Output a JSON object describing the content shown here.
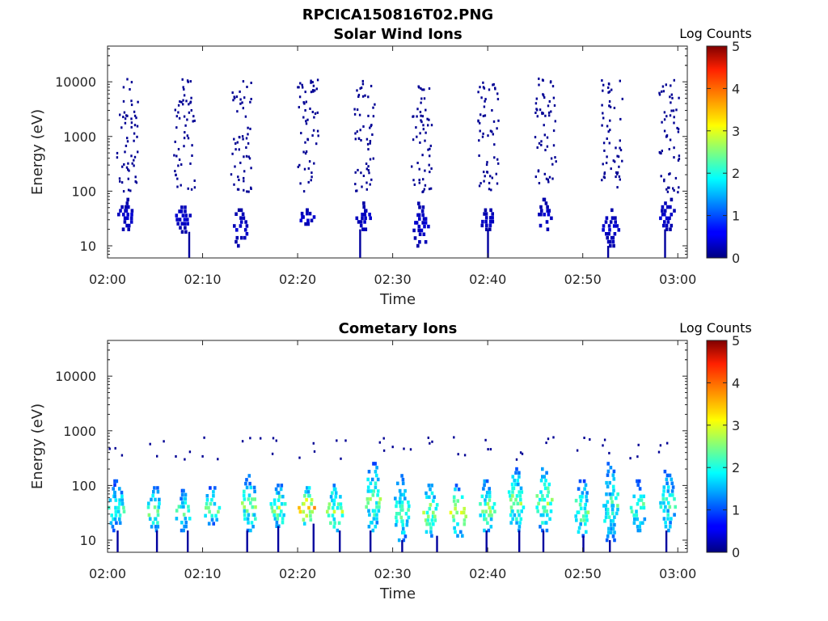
{
  "figure_title": "RPCICA150816T02.PNG",
  "chart_data": [
    {
      "type": "heatmap",
      "title": "Solar Wind Ions",
      "xlabel": "Time",
      "ylabel": "Energy (eV)",
      "y_scale": "log",
      "ylim": [
        6,
        45000
      ],
      "xlim": [
        "02:00",
        "03:01"
      ],
      "x_ticks": [
        "02:00",
        "02:10",
        "02:20",
        "02:30",
        "02:40",
        "02:50",
        "03:00"
      ],
      "y_ticks": [
        "10",
        "100",
        "1000",
        "10000"
      ],
      "colorbar": {
        "label": "Log Counts",
        "min": 0,
        "max": 5,
        "ticks": [
          "0",
          "1",
          "2",
          "3",
          "4",
          "5"
        ],
        "colormap": "jet"
      },
      "grid": false,
      "bursts": [
        {
          "time": "02:02",
          "energy_eV": [
            20,
            70
          ],
          "log_counts": 0.3
        },
        {
          "time": "02:08",
          "energy_eV": [
            18,
            60
          ],
          "log_counts": 0.3
        },
        {
          "time": "02:14",
          "energy_eV": [
            10,
            45
          ],
          "log_counts": 0.3
        },
        {
          "time": "02:21",
          "energy_eV": [
            25,
            45
          ],
          "log_counts": 0.35
        },
        {
          "time": "02:27",
          "energy_eV": [
            20,
            60
          ],
          "log_counts": 0.3
        },
        {
          "time": "02:33",
          "energy_eV": [
            10,
            70
          ],
          "log_counts": 0.3
        },
        {
          "time": "02:40",
          "energy_eV": [
            20,
            45
          ],
          "log_counts": 0.3
        },
        {
          "time": "02:46",
          "energy_eV": [
            20,
            70
          ],
          "log_counts": 0.3
        },
        {
          "time": "02:53",
          "energy_eV": [
            10,
            45
          ],
          "log_counts": 0.3
        },
        {
          "time": "02:59",
          "energy_eV": [
            20,
            70
          ],
          "log_counts": 0.3
        }
      ],
      "sparse_counts": {
        "energy_eV": [
          100,
          12000
        ],
        "log_counts": 0.1
      }
    },
    {
      "type": "heatmap",
      "title": "Cometary Ions",
      "xlabel": "Time",
      "ylabel": "Energy (eV)",
      "y_scale": "log",
      "ylim": [
        6,
        45000
      ],
      "xlim": [
        "02:00",
        "03:01"
      ],
      "x_ticks": [
        "02:00",
        "02:10",
        "02:20",
        "02:30",
        "02:40",
        "02:50",
        "03:00"
      ],
      "y_ticks": [
        "10",
        "100",
        "1000",
        "10000"
      ],
      "colorbar": {
        "label": "Log Counts",
        "min": 0,
        "max": 5,
        "ticks": [
          "0",
          "1",
          "2",
          "3",
          "4",
          "5"
        ],
        "colormap": "jet"
      },
      "grid": false,
      "bursts": [
        {
          "time": "02:01",
          "energy_eV": [
            15,
            120
          ],
          "log_counts": 1.6
        },
        {
          "time": "02:05",
          "energy_eV": [
            15,
            90
          ],
          "log_counts": 1.8
        },
        {
          "time": "02:08",
          "energy_eV": [
            15,
            80
          ],
          "log_counts": 1.7
        },
        {
          "time": "02:11",
          "energy_eV": [
            20,
            90
          ],
          "log_counts": 1.8
        },
        {
          "time": "02:15",
          "energy_eV": [
            15,
            150
          ],
          "log_counts": 1.8
        },
        {
          "time": "02:18",
          "energy_eV": [
            18,
            100
          ],
          "log_counts": 2.0
        },
        {
          "time": "02:21",
          "energy_eV": [
            20,
            90
          ],
          "log_counts": 2.4
        },
        {
          "time": "02:24",
          "energy_eV": [
            15,
            100
          ],
          "log_counts": 2.0
        },
        {
          "time": "02:28",
          "energy_eV": [
            15,
            250
          ],
          "log_counts": 1.8
        },
        {
          "time": "02:31",
          "energy_eV": [
            10,
            150
          ],
          "log_counts": 1.7
        },
        {
          "time": "02:34",
          "energy_eV": [
            12,
            100
          ],
          "log_counts": 2.0
        },
        {
          "time": "02:37",
          "energy_eV": [
            12,
            100
          ],
          "log_counts": 2.0
        },
        {
          "time": "02:40",
          "energy_eV": [
            15,
            120
          ],
          "log_counts": 1.9
        },
        {
          "time": "02:43",
          "energy_eV": [
            15,
            200
          ],
          "log_counts": 1.9
        },
        {
          "time": "02:46",
          "energy_eV": [
            15,
            200
          ],
          "log_counts": 1.9
        },
        {
          "time": "02:50",
          "energy_eV": [
            12,
            120
          ],
          "log_counts": 1.8
        },
        {
          "time": "02:53",
          "energy_eV": [
            10,
            250
          ],
          "log_counts": 1.6
        },
        {
          "time": "02:56",
          "energy_eV": [
            15,
            120
          ],
          "log_counts": 1.7
        },
        {
          "time": "02:59",
          "energy_eV": [
            15,
            180
          ],
          "log_counts": 1.6
        }
      ],
      "sparse_counts": {
        "energy_eV": [
          300,
          800
        ],
        "log_counts": 0.1
      }
    }
  ]
}
